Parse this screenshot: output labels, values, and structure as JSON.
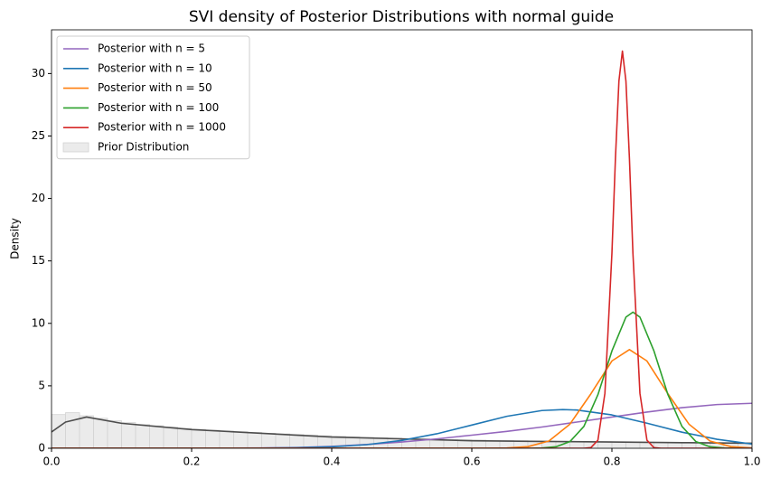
{
  "chart_data": {
    "type": "line",
    "title": "SVI density of Posterior Distributions with normal guide",
    "ylabel": "Density",
    "xlim": [
      0,
      1
    ],
    "ylim": [
      0,
      33.5
    ],
    "xticks": [
      {
        "value": 0,
        "label": "0.0"
      },
      0.2,
      0.4,
      0.6,
      0.8,
      {
        "value": 1,
        "label": "1.0"
      }
    ],
    "yticks": [
      0,
      5,
      10,
      15,
      20,
      25,
      30
    ],
    "legend": "upper left",
    "histogram": {
      "name": "Prior Distribution",
      "color": "#ebebeb",
      "bins": [
        0,
        0.02,
        0.04,
        0.06,
        0.08,
        0.1,
        0.12,
        0.14,
        0.16,
        0.18,
        0.2,
        0.22,
        0.24,
        0.26,
        0.28,
        0.3,
        0.32,
        0.34,
        0.36,
        0.38,
        0.4,
        0.42,
        0.44,
        0.46,
        0.48,
        0.5,
        0.52,
        0.54,
        0.56,
        0.58,
        0.6,
        0.62,
        0.64,
        0.66,
        0.68,
        0.7,
        0.72,
        0.74,
        0.76,
        0.78,
        0.8,
        0.82,
        0.84,
        0.86,
        0.88,
        0.9,
        0.92,
        0.94,
        0.96,
        0.98,
        1.0
      ],
      "counts": [
        2.7,
        2.85,
        2.6,
        2.4,
        2.2,
        2.05,
        1.9,
        1.8,
        1.7,
        1.6,
        1.52,
        1.45,
        1.38,
        1.32,
        1.26,
        1.2,
        1.15,
        1.1,
        1.05,
        1.0,
        0.96,
        0.92,
        0.88,
        0.85,
        0.82,
        0.79,
        0.76,
        0.73,
        0.7,
        0.68,
        0.66,
        0.64,
        0.62,
        0.6,
        0.58,
        0.56,
        0.55,
        0.54,
        0.53,
        0.52,
        0.51,
        0.5,
        0.49,
        0.48,
        0.47,
        0.46,
        0.45,
        0.44,
        0.43,
        0.42
      ]
    },
    "series": [
      {
        "color": "#4d4d4d",
        "x": [
          0,
          0.02,
          0.05,
          0.1,
          0.2,
          0.3,
          0.4,
          0.5,
          0.6,
          0.7,
          0.8,
          0.9,
          1.0
        ],
        "values": [
          1.3,
          2.1,
          2.5,
          2.0,
          1.5,
          1.2,
          0.9,
          0.75,
          0.6,
          0.55,
          0.5,
          0.45,
          0.4
        ]
      },
      {
        "name": "Posterior with n = 5",
        "color": "#9467bd",
        "x": [
          0,
          0.3,
          0.35,
          0.4,
          0.45,
          0.5,
          0.55,
          0.6,
          0.65,
          0.7,
          0.75,
          0.8,
          0.85,
          0.9,
          0.95,
          1.0
        ],
        "values": [
          0,
          0.02,
          0.06,
          0.15,
          0.3,
          0.5,
          0.75,
          1.05,
          1.35,
          1.7,
          2.1,
          2.5,
          2.9,
          3.25,
          3.5,
          3.6
        ]
      },
      {
        "name": "Posterior with n = 10",
        "color": "#1f77b4",
        "x": [
          0,
          0.3,
          0.35,
          0.4,
          0.45,
          0.5,
          0.55,
          0.6,
          0.65,
          0.7,
          0.73,
          0.75,
          0.8,
          0.85,
          0.9,
          0.95,
          1.0
        ],
        "values": [
          0,
          0.01,
          0.04,
          0.12,
          0.29,
          0.63,
          1.16,
          1.86,
          2.56,
          3.02,
          3.1,
          3.06,
          2.67,
          2.01,
          1.29,
          0.72,
          0.34
        ]
      },
      {
        "name": "Posterior with n = 50",
        "color": "#ff7f0e",
        "x": [
          0,
          0.62,
          0.65,
          0.68,
          0.71,
          0.74,
          0.77,
          0.8,
          0.825,
          0.85,
          0.88,
          0.91,
          0.94,
          0.97,
          1.0
        ],
        "values": [
          0,
          0,
          0.02,
          0.13,
          0.58,
          1.93,
          4.36,
          6.99,
          7.9,
          6.99,
          4.36,
          1.93,
          0.58,
          0.13,
          0.02
        ]
      },
      {
        "name": "Posterior with n = 100",
        "color": "#2ca02c",
        "x": [
          0,
          0.68,
          0.7,
          0.72,
          0.74,
          0.76,
          0.78,
          0.8,
          0.82,
          0.83,
          0.84,
          0.86,
          0.88,
          0.9,
          0.92,
          0.94,
          0.96,
          0.98,
          1.0
        ],
        "values": [
          0,
          0,
          0.02,
          0.12,
          0.53,
          1.75,
          4.29,
          7.79,
          10.5,
          10.9,
          10.5,
          7.79,
          4.29,
          1.75,
          0.53,
          0.12,
          0.02,
          0,
          0
        ]
      },
      {
        "name": "Posterior with n = 1000",
        "color": "#d62728",
        "x": [
          0,
          0.76,
          0.77,
          0.78,
          0.79,
          0.8,
          0.805,
          0.81,
          0.815,
          0.82,
          0.825,
          0.83,
          0.84,
          0.85,
          0.86,
          0.87,
          1.0
        ],
        "values": [
          0,
          0,
          0.05,
          0.65,
          4.4,
          15.6,
          23.2,
          29.4,
          31.8,
          29.4,
          23.2,
          15.6,
          4.4,
          0.65,
          0.05,
          0,
          0
        ]
      }
    ]
  }
}
